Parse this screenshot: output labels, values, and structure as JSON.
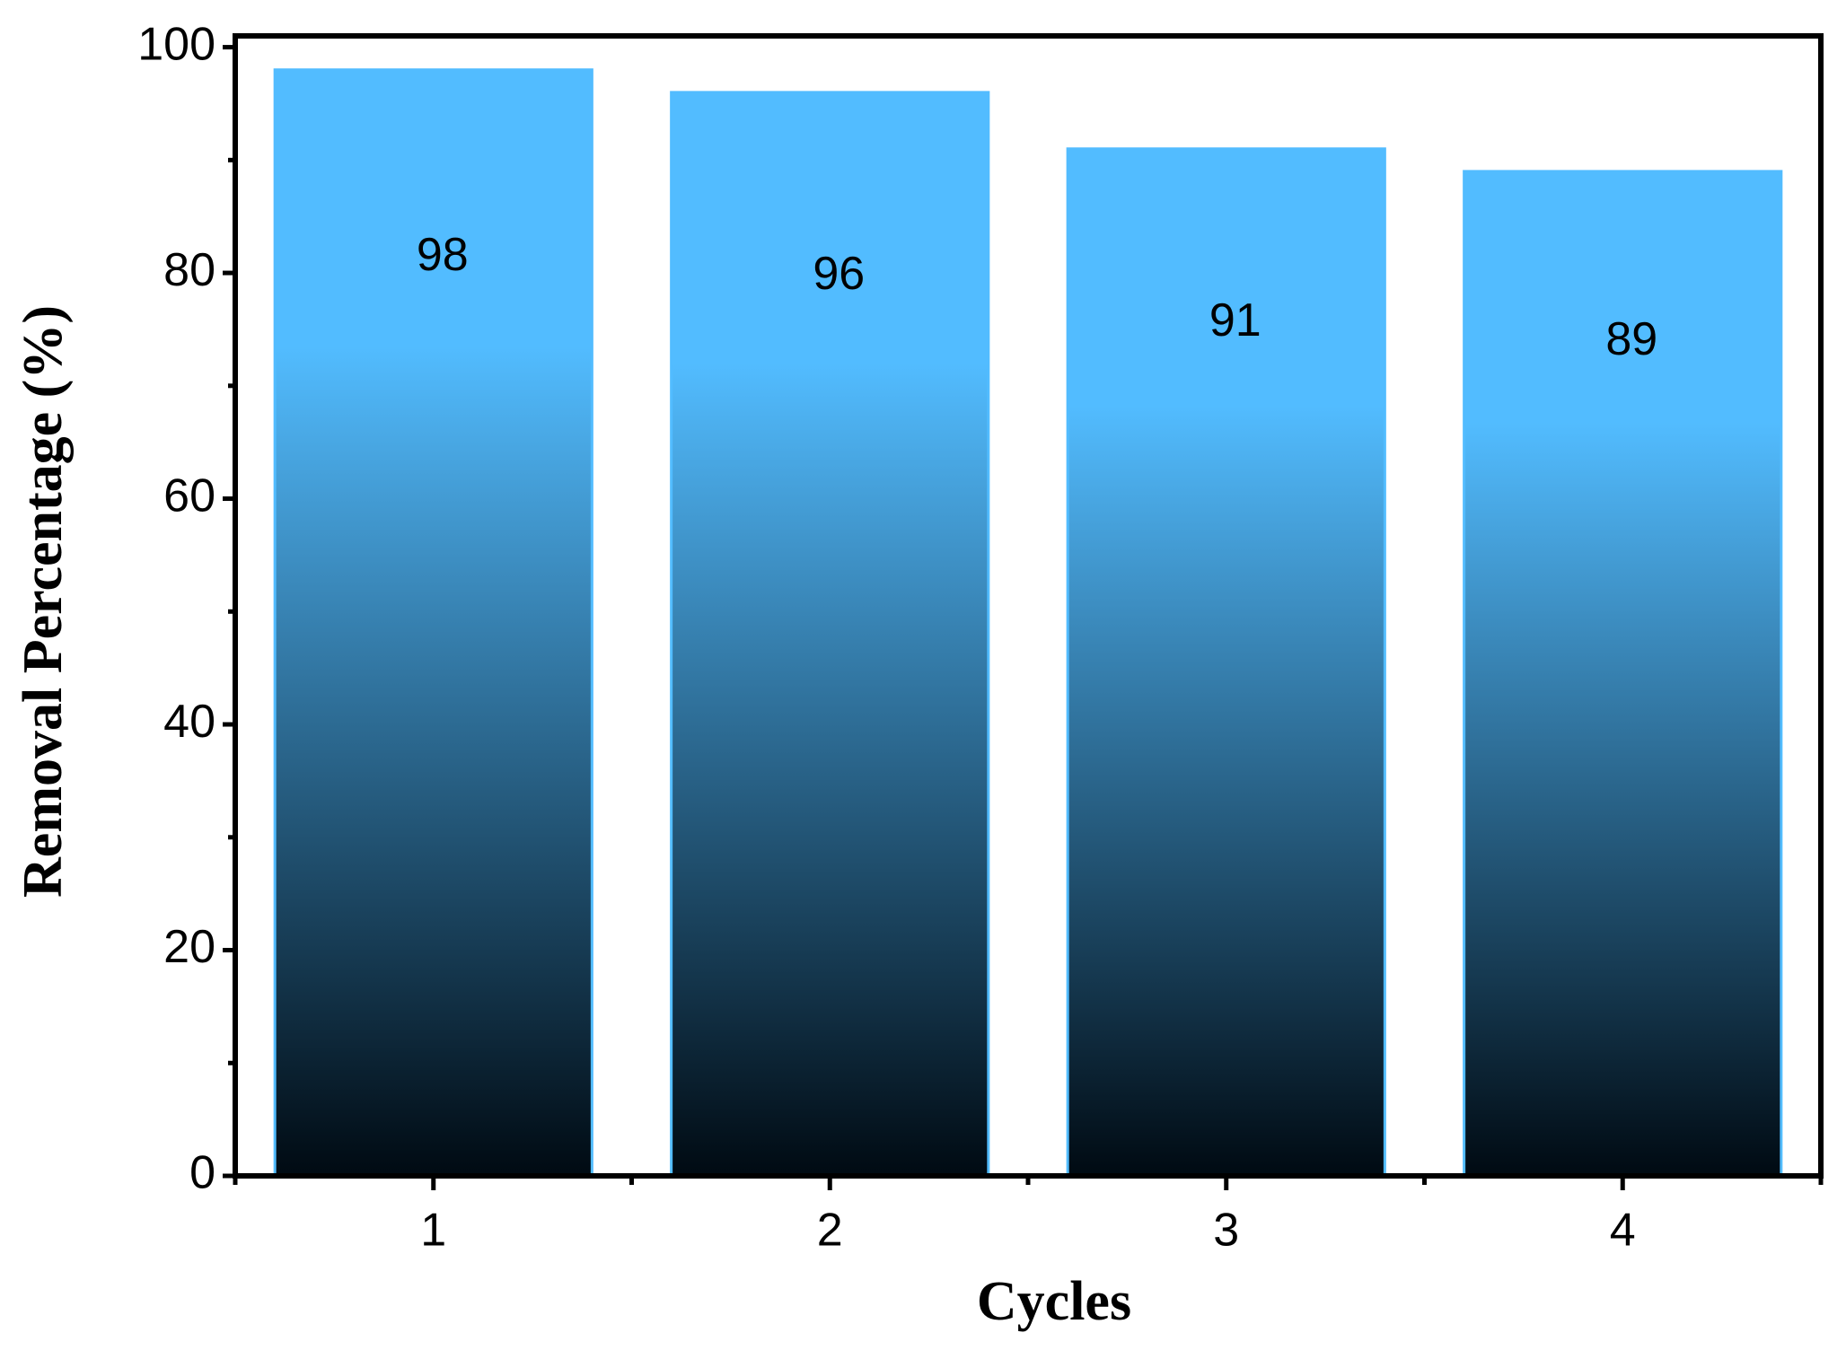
{
  "chart_data": {
    "type": "bar",
    "x_label": "Cycles",
    "y_label": "Removal Percentage (%)",
    "categories": [
      "1",
      "2",
      "3",
      "4"
    ],
    "values": [
      98,
      96,
      91,
      89
    ],
    "color": "#52bcff",
    "gradient_color": "#000a12",
    "ylim": [
      0,
      101
    ],
    "yticks": [
      0,
      20,
      40,
      60,
      80,
      100
    ],
    "minor_yticks": [
      10,
      30,
      50,
      70,
      90
    ],
    "grid": false
  }
}
